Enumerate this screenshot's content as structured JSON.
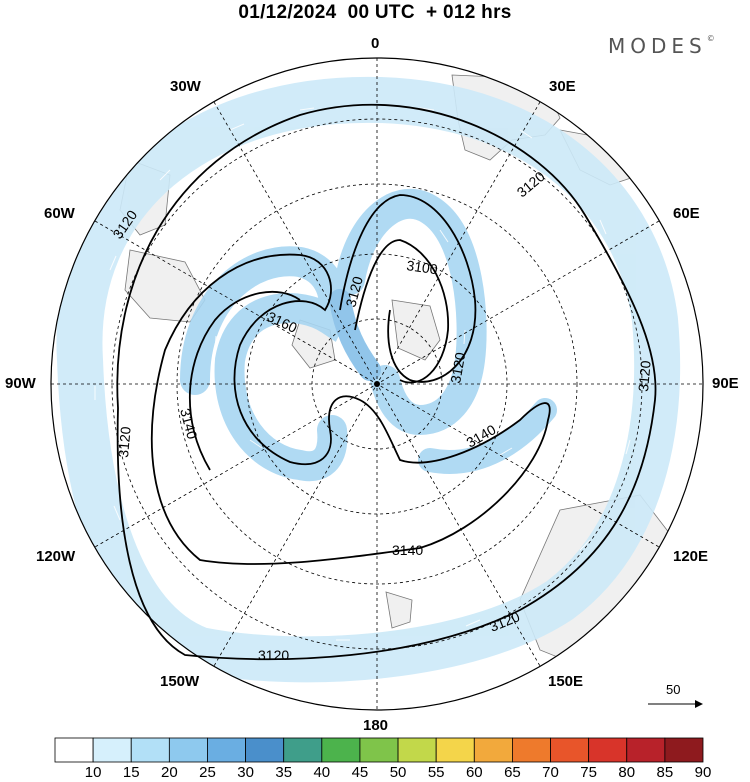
{
  "header": {
    "title": "01/12/2024  00 UTC  + 012 hrs",
    "brand": "MODES",
    "brand_mark": "©"
  },
  "longitude_labels": {
    "top": "0",
    "bottom": "180",
    "left": "90W",
    "right": "90E",
    "top_left": "30W",
    "top_right": "30E",
    "upper_left": "60W",
    "upper_right": "60E",
    "lower_left": "120W",
    "lower_right": "120E",
    "bottom_left": "150W",
    "bottom_right": "150E"
  },
  "contour_labels": [
    "3120",
    "3120",
    "3120",
    "3120",
    "3120",
    "3120",
    "3120",
    "3120",
    "3140",
    "3140",
    "3140",
    "3160",
    "3100"
  ],
  "reference_vector": {
    "value": "50"
  },
  "colorbar": {
    "levels": [
      "10",
      "15",
      "20",
      "25",
      "30",
      "35",
      "40",
      "45",
      "50",
      "55",
      "60",
      "65",
      "70",
      "75",
      "80",
      "85",
      "90"
    ],
    "colors": [
      "#ffffff",
      "#d6f0fc",
      "#b2e0f7",
      "#8ec9ee",
      "#6aaee2",
      "#4a8fcb",
      "#3f9e8a",
      "#4cb34c",
      "#7fc44a",
      "#c2d84a",
      "#f4d54a",
      "#f2a93c",
      "#ee7a2c",
      "#e8552a",
      "#d8342a",
      "#b8222a",
      "#8e1a1e"
    ]
  },
  "colors": {
    "land": "#f0f0f0",
    "jet_light": "#cce9f8",
    "jet_medium": "#a8d6f2",
    "jet_strong": "#86bfe8",
    "contour": "#000000"
  }
}
